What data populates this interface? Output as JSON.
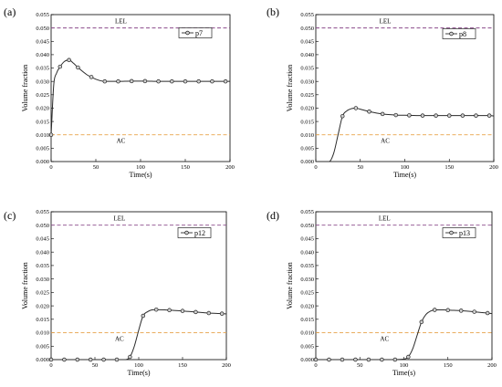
{
  "chart_data": [
    {
      "type": "line",
      "panel_label": "(a)",
      "xlabel": "Time(s)",
      "ylabel": "Volume fraction",
      "xlim": [
        0,
        200
      ],
      "ylim": [
        0,
        0.055
      ],
      "xticks": [
        "0",
        "50",
        "100",
        "150",
        "200"
      ],
      "yticks": [
        "0.000",
        "0.005",
        "0.010",
        "0.015",
        "0.020",
        "0.025",
        "0.030",
        "0.035",
        "0.040",
        "0.045",
        "0.050",
        "0.055"
      ],
      "series": [
        {
          "name": "p7",
          "x": [
            0,
            3,
            6,
            10,
            15,
            20,
            25,
            30,
            40,
            50,
            60,
            75,
            90,
            105,
            120,
            135,
            150,
            165,
            180,
            195,
            200
          ],
          "y": [
            0.01,
            0.029,
            0.033,
            0.0355,
            0.0375,
            0.038,
            0.0368,
            0.0352,
            0.0325,
            0.0308,
            0.03,
            0.03,
            0.0301,
            0.0301,
            0.03,
            0.03,
            0.03,
            0.03,
            0.03,
            0.03,
            0.03
          ],
          "marker_x": [
            0,
            10,
            20,
            30,
            45,
            60,
            75,
            90,
            105,
            120,
            135,
            150,
            165,
            180,
            195
          ]
        }
      ],
      "reference_lines": [
        {
          "label": "LEL",
          "y": 0.05,
          "color": "#8b4a8b"
        },
        {
          "label": "AC",
          "y": 0.01,
          "color": "#e8a34a"
        }
      ],
      "legend_position": "top-right",
      "grid": false
    },
    {
      "type": "line",
      "panel_label": "(b)",
      "xlabel": "Time(s)",
      "ylabel": "Volume fraction",
      "xlim": [
        0,
        200
      ],
      "ylim": [
        0,
        0.055
      ],
      "xticks": [
        "0",
        "50",
        "100",
        "150",
        "200"
      ],
      "yticks": [
        "0.000",
        "0.005",
        "0.010",
        "0.015",
        "0.020",
        "0.025",
        "0.030",
        "0.035",
        "0.040",
        "0.045",
        "0.050",
        "0.055"
      ],
      "series": [
        {
          "name": "p8",
          "x": [
            0,
            15,
            20,
            25,
            30,
            35,
            40,
            45,
            50,
            60,
            75,
            90,
            105,
            120,
            135,
            150,
            165,
            180,
            195,
            200
          ],
          "y": [
            0.0,
            0.0,
            0.003,
            0.01,
            0.017,
            0.019,
            0.0198,
            0.02,
            0.0196,
            0.0187,
            0.0178,
            0.0174,
            0.0173,
            0.0172,
            0.0172,
            0.0172,
            0.0172,
            0.0172,
            0.0172,
            0.0171
          ],
          "marker_x": [
            30,
            45,
            60,
            75,
            90,
            105,
            120,
            135,
            150,
            165,
            180,
            195
          ]
        }
      ],
      "reference_lines": [
        {
          "label": "LEL",
          "y": 0.05,
          "color": "#8b4a8b"
        },
        {
          "label": "AC",
          "y": 0.01,
          "color": "#e8a34a"
        }
      ],
      "legend_position": "top-right",
      "grid": false
    },
    {
      "type": "line",
      "panel_label": "(c)",
      "xlabel": "Time(s)",
      "ylabel": "Volume fraction",
      "xlim": [
        0,
        200
      ],
      "ylim": [
        0,
        0.055
      ],
      "xticks": [
        "0",
        "50",
        "100",
        "150",
        "200"
      ],
      "yticks": [
        "0.000",
        "0.005",
        "0.010",
        "0.015",
        "0.020",
        "0.025",
        "0.030",
        "0.035",
        "0.040",
        "0.045",
        "0.050",
        "0.055"
      ],
      "series": [
        {
          "name": "p12",
          "x": [
            0,
            15,
            30,
            45,
            60,
            75,
            85,
            90,
            95,
            100,
            105,
            110,
            115,
            120,
            130,
            140,
            150,
            165,
            180,
            195,
            200
          ],
          "y": [
            0.0,
            0.0,
            0.0,
            0.0,
            0.0,
            0.0,
            0.0,
            0.001,
            0.005,
            0.011,
            0.0163,
            0.0178,
            0.0185,
            0.0186,
            0.0185,
            0.0183,
            0.0181,
            0.0177,
            0.0173,
            0.0171,
            0.017
          ],
          "marker_x": [
            0,
            15,
            30,
            45,
            60,
            75,
            90,
            105,
            120,
            135,
            150,
            165,
            180,
            195
          ]
        }
      ],
      "reference_lines": [
        {
          "label": "LEL",
          "y": 0.05,
          "color": "#8b4a8b"
        },
        {
          "label": "AC",
          "y": 0.01,
          "color": "#e8a34a"
        }
      ],
      "legend_position": "top-right",
      "grid": false
    },
    {
      "type": "line",
      "panel_label": "(d)",
      "xlabel": "Time(s)",
      "ylabel": "Volume fraction",
      "xlim": [
        0,
        200
      ],
      "ylim": [
        0,
        0.055
      ],
      "xticks": [
        "0",
        "50",
        "100",
        "150",
        "200"
      ],
      "yticks": [
        "0.000",
        "0.005",
        "0.010",
        "0.015",
        "0.020",
        "0.025",
        "0.030",
        "0.035",
        "0.040",
        "0.045",
        "0.050",
        "0.055"
      ],
      "series": [
        {
          "name": "p13",
          "x": [
            0,
            15,
            30,
            45,
            60,
            75,
            90,
            100,
            105,
            110,
            115,
            120,
            125,
            130,
            135,
            145,
            150,
            165,
            180,
            195,
            200
          ],
          "y": [
            0.0,
            0.0,
            0.0,
            0.0,
            0.0,
            0.0,
            0.0,
            0.0002,
            0.001,
            0.004,
            0.009,
            0.014,
            0.0168,
            0.018,
            0.0185,
            0.0185,
            0.0184,
            0.0182,
            0.0178,
            0.0173,
            0.0171
          ],
          "marker_x": [
            0,
            15,
            30,
            45,
            60,
            75,
            90,
            105,
            120,
            135,
            150,
            165,
            180,
            195
          ]
        }
      ],
      "reference_lines": [
        {
          "label": "LEL",
          "y": 0.05,
          "color": "#8b4a8b"
        },
        {
          "label": "AC",
          "y": 0.01,
          "color": "#e8a34a"
        }
      ],
      "legend_position": "top-right",
      "grid": false
    }
  ]
}
